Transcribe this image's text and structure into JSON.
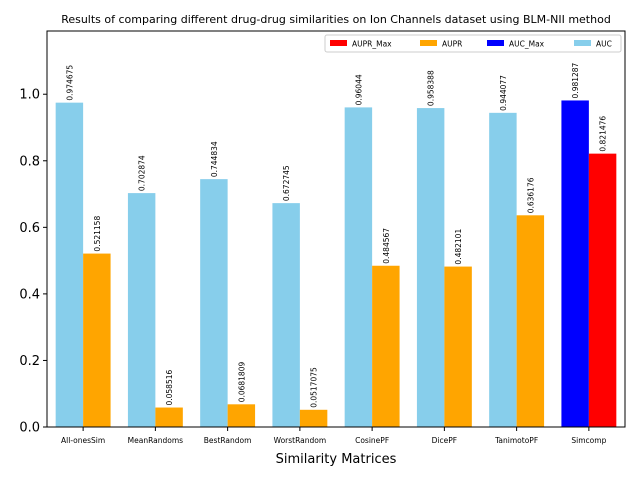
{
  "chart_data": {
    "type": "bar",
    "title": "Results of comparing different drug-drug similarities on Ion Channels dataset using BLM-NII method",
    "xlabel": "Similarity Matrices",
    "ylabel": "",
    "ylim": [
      0,
      1.19
    ],
    "yticks": [
      "0.0",
      "0.2",
      "0.4",
      "0.6",
      "0.8",
      "1.0"
    ],
    "categories": [
      "All-onesSim",
      "MeanRandoms",
      "BestRandom",
      "WorstRandom",
      "CosinePF",
      "DicePF",
      "TanimotoPF",
      "Simcomp"
    ],
    "series": [
      {
        "name": "AUC",
        "color": "#87ceeb",
        "values": [
          0.974675,
          0.702874,
          0.744834,
          0.672745,
          0.96044,
          0.958388,
          0.944077,
          null
        ]
      },
      {
        "name": "AUPR",
        "color": "#ffa500",
        "values": [
          0.521158,
          0.058516,
          0.0681809,
          0.0517075,
          0.484567,
          0.482101,
          0.636176,
          null
        ]
      },
      {
        "name": "AUC_Max",
        "color": "#0000ff",
        "values": [
          null,
          null,
          null,
          null,
          null,
          null,
          null,
          0.981287
        ]
      },
      {
        "name": "AUPR_Max",
        "color": "#ff0000",
        "values": [
          null,
          null,
          null,
          null,
          null,
          null,
          null,
          0.821476
        ]
      }
    ],
    "value_labels": {
      "auc": [
        "0.974675",
        "0.702874",
        "0.744834",
        "0.672745",
        "0.96044",
        "0.958388",
        "0.944077",
        "0.981287"
      ],
      "aupr": [
        "0.521158",
        "0.058516",
        "0.0681809",
        "0.0517075",
        "0.484567",
        "0.482101",
        "0.636176",
        "0.821476"
      ]
    },
    "legend": {
      "position": "top-right",
      "entries": [
        {
          "label": "AUPR_Max",
          "color": "#ff0000"
        },
        {
          "label": "AUPR",
          "color": "#ffa500"
        },
        {
          "label": "AUC_Max",
          "color": "#0000ff"
        },
        {
          "label": "AUC",
          "color": "#87ceeb"
        }
      ]
    },
    "grid": false
  }
}
